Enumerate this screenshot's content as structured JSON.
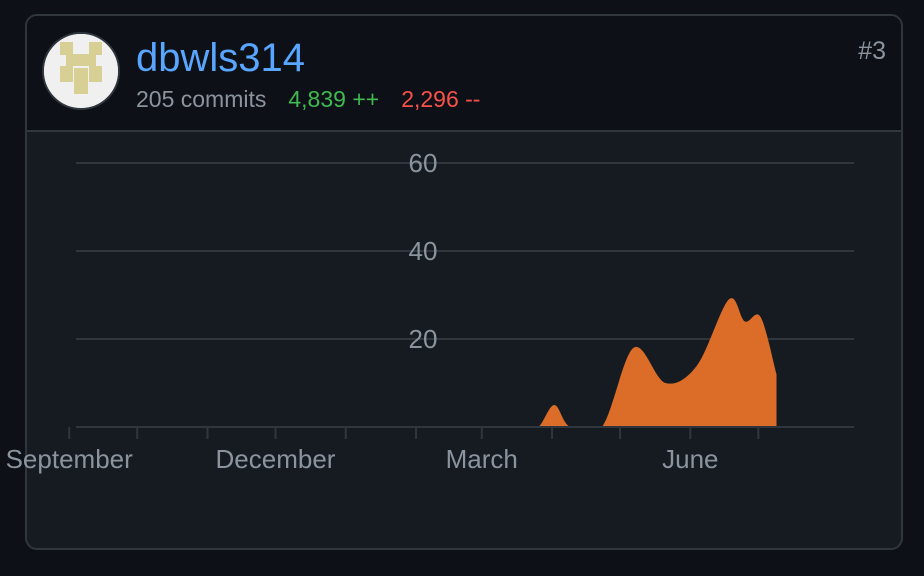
{
  "contributor": {
    "username": "dbwls314",
    "commits": "205 commits",
    "additions": "4,839 ++",
    "deletions": "2,296 --",
    "rank": "#3",
    "avatar_icon": "identicon-avatar"
  },
  "colors": {
    "background": "#0d1117",
    "card": "#161b22",
    "border": "#30363d",
    "username": "#58a6ff",
    "muted": "#8b949e",
    "additions": "#3fb950",
    "deletions": "#f85149",
    "area_fill": "#db6d28"
  },
  "chart_data": {
    "type": "area",
    "title": "",
    "xlabel": "",
    "ylabel": "",
    "ylim": [
      0,
      60
    ],
    "yticks": [
      20,
      40,
      60
    ],
    "xlim": [
      "2023-08-20",
      "2024-08-10"
    ],
    "xtick_labels": [
      {
        "date": "2023-09-01",
        "label": "September"
      },
      {
        "date": "2023-12-01",
        "label": "December"
      },
      {
        "date": "2024-03-01",
        "label": "March"
      },
      {
        "date": "2024-06-01",
        "label": "June"
      }
    ],
    "x_minor_ticks": [
      "2023-10-01",
      "2023-11-01",
      "2024-01-01",
      "2024-02-01",
      "2024-04-01",
      "2024-05-01",
      "2024-07-01"
    ],
    "grid": true,
    "series": [
      {
        "values": [
          [
            "2024-03-19",
            0
          ],
          [
            "2024-03-26",
            0
          ],
          [
            "2024-04-02",
            5
          ],
          [
            "2024-04-09",
            0
          ],
          [
            "2024-04-23",
            0
          ],
          [
            "2024-05-07",
            18
          ],
          [
            "2024-05-21",
            10
          ],
          [
            "2024-06-04",
            14
          ],
          [
            "2024-06-18",
            29
          ],
          [
            "2024-06-25",
            24
          ],
          [
            "2024-07-02",
            25
          ],
          [
            "2024-07-09",
            12
          ]
        ]
      }
    ]
  }
}
